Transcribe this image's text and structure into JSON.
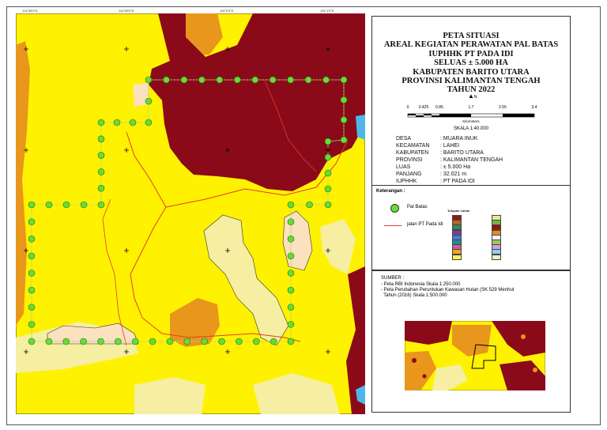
{
  "title_lines": [
    "PETA SITUASI",
    "AREAL KEGIATAN PERAWATAN PAL BATAS",
    "IUPHHK PT PADA IDI",
    "SELUAS ± 5.000 HA",
    "KABUPATEN BARITO UTARA",
    "PROVINSI KALIMANTAN TENGAH",
    "TAHUN 2022"
  ],
  "north_label": "N",
  "scale": {
    "ticks": [
      "0",
      "0.425",
      "0.85",
      "1.7",
      "2.55",
      "3.4"
    ],
    "unit": "Kilometers",
    "ratio": "SKALA 1:40.000"
  },
  "info": [
    {
      "key": "DESA",
      "value": ": MUARA INUK"
    },
    {
      "key": "KECAMATAN",
      "value": ": LAHEI"
    },
    {
      "key": "KABUPATEN",
      "value": ": BARITO UTARA"
    },
    {
      "key": "PROVINSI",
      "value": ": KALIMANTAN TENGAH"
    },
    {
      "key": "LUAS",
      "value": ": ± 5.000 Ha"
    },
    {
      "key": "PANJANG",
      "value": ": 32.021 m"
    },
    {
      "key": "IUPHHK",
      "value": ": PT PADA IDI"
    }
  ],
  "legend": {
    "heading": "Keterangan :",
    "items": [
      {
        "label": "Pal Batas",
        "symbol": "green-circle",
        "color": "#66dd33"
      },
      {
        "label": "jalan PT Pada Idi",
        "symbol": "red-line",
        "color": "#e33b2a"
      }
    ],
    "landuse_heading": "Tutupan Lahan",
    "landuse_colors": [
      "#8b1a1a",
      "#b5651d",
      "#2e8b57",
      "#7b3f9e",
      "#4a7bd0",
      "#1c8f8f",
      "#cf5c9f",
      "#f1a31f",
      "#fff25a",
      "#f3e39a",
      "#66bb44",
      "#9a1010",
      "#e78b1f",
      "#ffffff",
      "#a0c85a",
      "#c8a2d8",
      "#8fd0e8",
      "#ffe9c8"
    ]
  },
  "sources": {
    "heading": "SUMBER :",
    "lines": [
      "- Peta RBI Indonesia Skala 1:250.000",
      "- Peta Perubahan Peruntukan Kawasan Hutan (SK 529 Menhut",
      "  Tahun (2016) Skala 1:500.000"
    ]
  },
  "map_colors": {
    "background": "#fff200",
    "dark_red": "#8b0a1a",
    "orange": "#e9961c",
    "light_yellow": "#f6eea0",
    "peach": "#fbe1bd",
    "boundary": "#8fcf5a",
    "road": "#e33b2a",
    "water": "#4fb7e8"
  }
}
